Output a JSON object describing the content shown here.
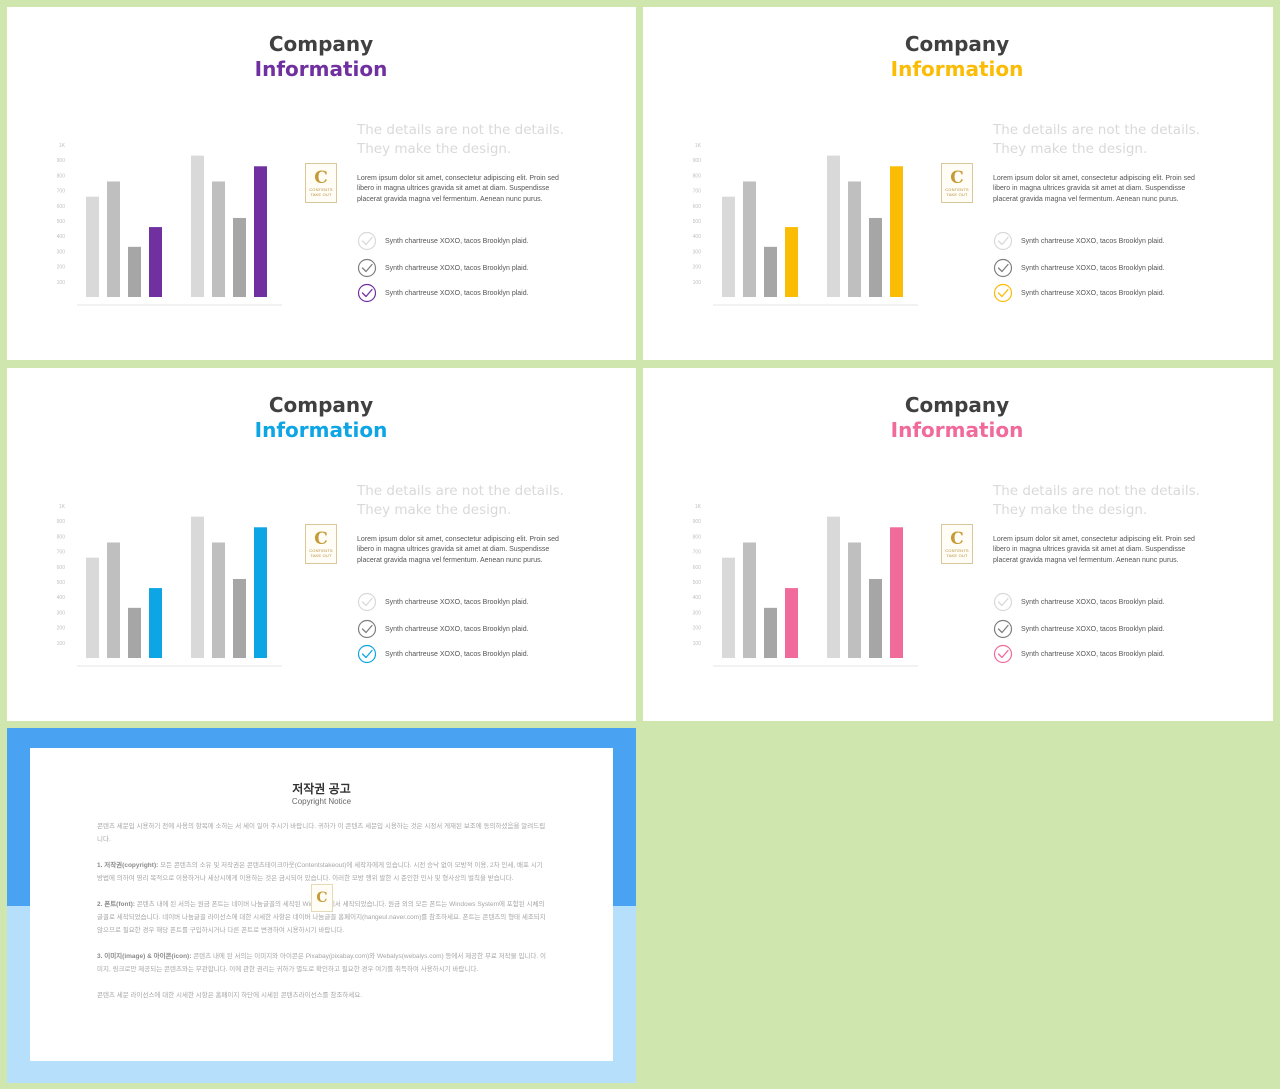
{
  "slides": [
    {
      "title_line1": "Company",
      "title_line2": "Information",
      "accent": "#7030a0",
      "headline_line1": "The details are not the details.",
      "headline_line2": "They make the design.",
      "body": "Lorem ipsum dolor sit amet, consectetur adipiscing elit. Proin sed libero in magna ultrices gravida sit amet at diam. Suspendisse placerat gravida magna vel fermentum.  Aenean nunc purus.",
      "logo_letter": "C",
      "logo_text": "CONTENTS",
      "logo_sub": "TAKE OUT",
      "checklist": [
        "Synth chartreuse XOXO, tacos Brooklyn plaid.",
        "Synth chartreuse XOXO, tacos Brooklyn plaid.",
        "Synth chartreuse XOXO, tacos Brooklyn plaid."
      ]
    },
    {
      "title_line1": "Company",
      "title_line2": "Information",
      "accent": "#fbbc05",
      "headline_line1": "The details are not the details.",
      "headline_line2": "They make the design.",
      "body": "Lorem ipsum dolor sit amet, consectetur adipiscing elit. Proin sed libero in magna ultrices gravida sit amet at diam. Suspendisse placerat gravida magna vel fermentum.  Aenean nunc purus.",
      "logo_letter": "C",
      "logo_text": "CONTENTS",
      "logo_sub": "TAKE OUT",
      "checklist": [
        "Synth chartreuse XOXO, tacos Brooklyn plaid.",
        "Synth chartreuse XOXO, tacos Brooklyn plaid.",
        "Synth chartreuse XOXO, tacos Brooklyn plaid."
      ]
    },
    {
      "title_line1": "Company",
      "title_line2": "Information",
      "accent": "#0ea5e4",
      "headline_line1": "The details are not the details.",
      "headline_line2": "They make the design.",
      "body": "Lorem ipsum dolor sit amet, consectetur adipiscing elit. Proin sed libero in magna ultrices gravida sit amet at diam. Suspendisse placerat gravida magna vel fermentum.  Aenean nunc purus.",
      "logo_letter": "C",
      "logo_text": "CONTENTS",
      "logo_sub": "TAKE OUT",
      "checklist": [
        "Synth chartreuse XOXO, tacos Brooklyn plaid.",
        "Synth chartreuse XOXO, tacos Brooklyn plaid.",
        "Synth chartreuse XOXO, tacos Brooklyn plaid."
      ]
    },
    {
      "title_line1": "Company",
      "title_line2": "Information",
      "accent": "#f06a9b",
      "headline_line1": "The details are not the details.",
      "headline_line2": "They make the design.",
      "body": "Lorem ipsum dolor sit amet, consectetur adipiscing elit. Proin sed libero in magna ultrices gravida sit amet at diam. Suspendisse placerat gravida magna vel fermentum.  Aenean nunc purus.",
      "logo_letter": "C",
      "logo_text": "CONTENTS",
      "logo_sub": "TAKE OUT",
      "checklist": [
        "Synth chartreuse XOXO, tacos Brooklyn plaid.",
        "Synth chartreuse XOXO, tacos Brooklyn plaid.",
        "Synth chartreuse XOXO, tacos Brooklyn plaid."
      ]
    }
  ],
  "chart_data": {
    "type": "bar",
    "ylim": [
      0,
      1000
    ],
    "yticks": [
      "100",
      "200",
      "300",
      "400",
      "500",
      "600",
      "700",
      "800",
      "900",
      "1K"
    ],
    "values": [
      660,
      760,
      330,
      460,
      930,
      760,
      520,
      860
    ],
    "colors": [
      "#d9d9d9",
      "#bfbfbf",
      "#a6a6a6",
      "accent",
      "#d9d9d9",
      "#bfbfbf",
      "#a6a6a6",
      "accent"
    ],
    "grid": false,
    "legend": "none"
  },
  "copyright": {
    "title": "저작권 공고",
    "subtitle": "Copyright Notice",
    "logo_letter": "C",
    "para1": "콘텐츠 세문입 시용하기 전에 사용의 항목에 소하는 서 세이 일어 주시기 바랍니다. 귀하가 이 콘텐츠 세문입 시용하는 것은 시정서 게재된 보조에 동의하셨음을 알려드립니다.",
    "para2_label": "1. 저작권(copyright):",
    "para2": " 모든 콘텐츠의 소유 및 저작권은 콘텐츠테이크아웃(Contentstakeout)에 세작자에게 있습니다. 시전 승낙 없이 모방적 이용, 2차 인세, 배포 시기 방법에 의하여 영리 목적으로 이용하거나 세상시에게 이용하는 것은 금시되어 있습니다. 이러한 모방 행위 발한 시 준인한 민사 및 형사상의 벌칙을 받습니다.",
    "para3_label": "2. 폰트(font):",
    "para3": " 콘텐츠 내에 된 서의는 원금 폰트는 네이버 나눔글꼴의 세작된 Windows에서 세작되었습니다. 원금 외의 모든 폰트는 Windows System에 포함된 시체의 글꼴로 세작되었습니다. 네이버 나눔글꼴 라이선스에 대한 시세한 사항은 네이버 나눔글꼴 홈페이지(hangeul.naver.com)를 참조하세요. 폰트는 콘텐츠의 형태 세조되지 않으므로 필요한 경우 해당 폰트를 구입하시거나 다른 폰트로 변경하여 시용하시기 바랍니다.",
    "para4_label": "3. 이미지(image) & 아이콘(icon):",
    "para4": " 콘텐츠 내에 된 서의는 이미지와 아이콘은 Pixabay(pixabay.com)와 Webalys(webalys.com) 등에서 제공한 무료 저작물 입니다. 이미지, 링크로만 제공되는 콘텐츠와는 무관합니다. 이에 관한 권리는 귀하가 별도로 확인하고 필요한 경우 여기를 취득하여 사용하시기 바랍니다.",
    "para5": "콘텐츠 세문 라이선스에 대한 시세한 시항은 홈페이지 하단에 시세된 콘텐츠라이선스를 참조하세요."
  }
}
